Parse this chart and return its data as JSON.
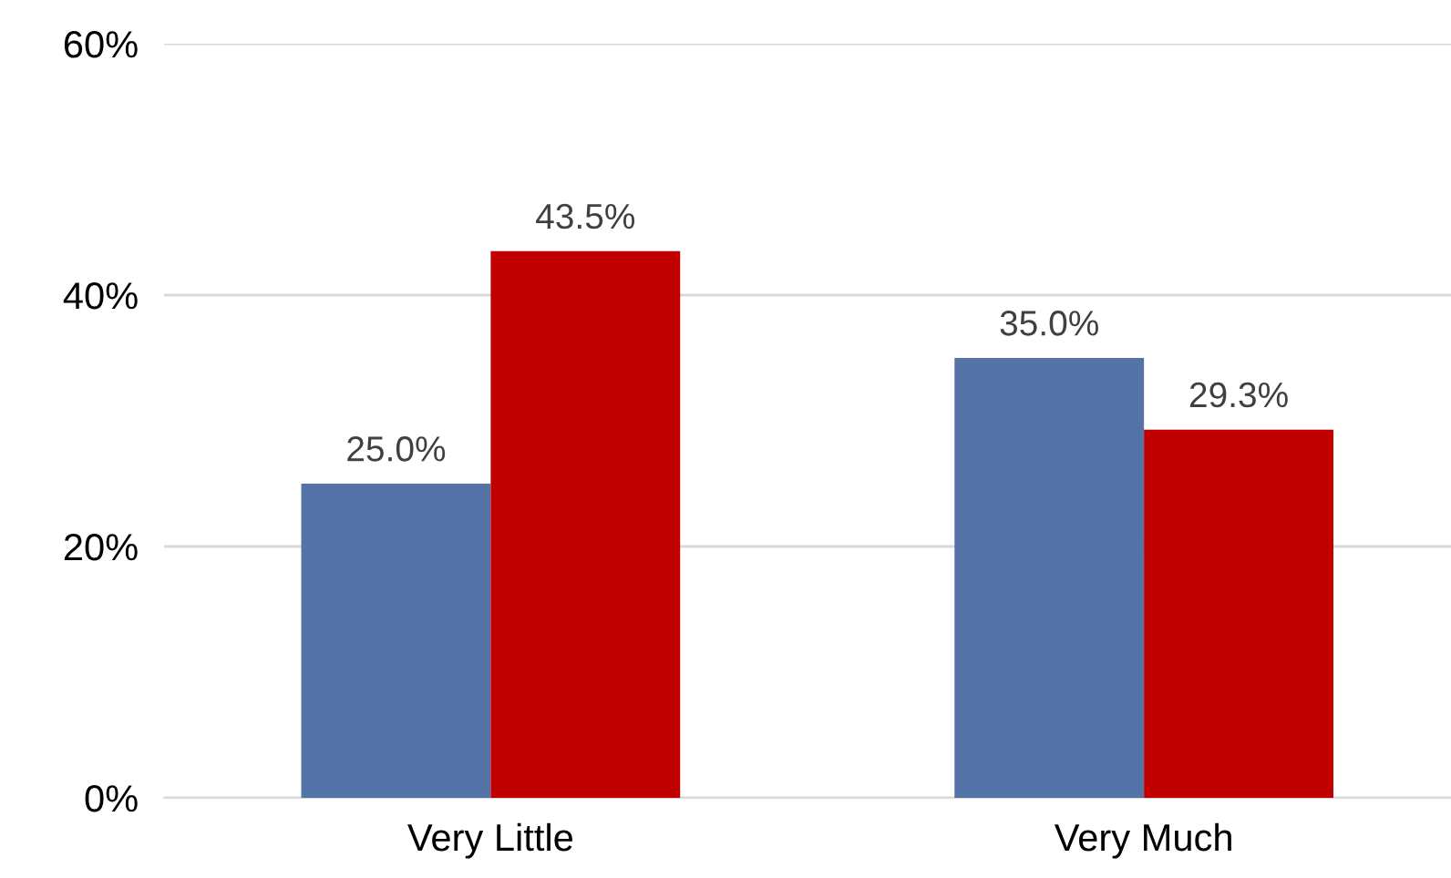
{
  "chart_data": {
    "type": "bar",
    "categories": [
      "Very Little",
      "Very Much"
    ],
    "series": [
      {
        "color": "#5474a8",
        "values": [
          25.0,
          35.0
        ],
        "value_labels": [
          "25.0%",
          "35.0%"
        ]
      },
      {
        "color": "#c00000",
        "values": [
          43.5,
          29.3
        ],
        "value_labels": [
          "43.5%",
          "29.3%"
        ]
      }
    ],
    "ylim": [
      0,
      60
    ],
    "yticks": [
      {
        "value": 0,
        "label": "0%"
      },
      {
        "value": 20,
        "label": "20%"
      },
      {
        "value": 40,
        "label": "40%"
      },
      {
        "value": 60,
        "label": "60%"
      }
    ],
    "grid": "y"
  }
}
